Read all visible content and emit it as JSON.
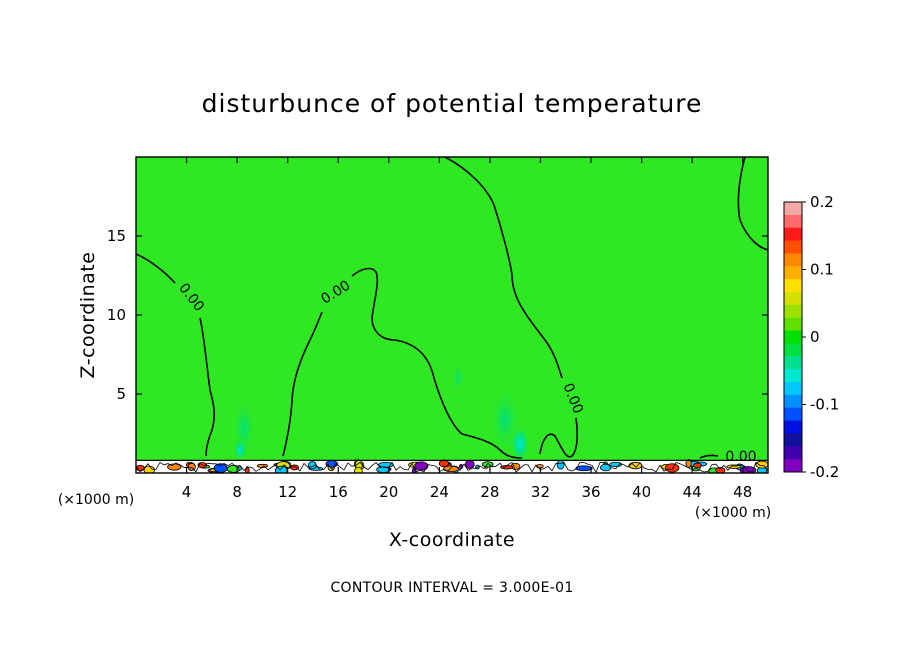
{
  "chart_data": {
    "type": "contour",
    "title": "disturbunce of potential temperature",
    "xlabel": "X-coordinate",
    "ylabel": "Z-coordinate",
    "x_unit": "(×1000 m)",
    "xlim": [
      0,
      50
    ],
    "ylim": [
      0,
      20
    ],
    "x_ticks": [
      4,
      8,
      12,
      16,
      20,
      24,
      28,
      32,
      36,
      40,
      44,
      48
    ],
    "y_ticks": [
      5,
      10,
      15
    ],
    "colorbar": {
      "range": [
        -0.2,
        0.2
      ],
      "tick_values": [
        0.2,
        0.1,
        0,
        -0.1,
        -0.2
      ],
      "tick_labels": [
        "0.2",
        "0.1",
        "0",
        "-0.1",
        "-0.2"
      ],
      "colors": [
        "#f4a8a8",
        "#ff6b6b",
        "#ff1a1a",
        "#ff5000",
        "#ff8800",
        "#ffb000",
        "#ffe000",
        "#d4e000",
        "#9ee000",
        "#60e000",
        "#00e000",
        "#00e040",
        "#00e090",
        "#00e8d0",
        "#00c8ff",
        "#0090ff",
        "#0050ff",
        "#0010e0",
        "#1010a0",
        "#4000b0",
        "#8000c0"
      ],
      "background_level_color": "#2ee822"
    },
    "contour_labels": [
      "0.00",
      "0.00",
      "0.00",
      "0.00"
    ],
    "contour_interval_note": "CONTOUR INTERVAL = 3.000E-01"
  }
}
